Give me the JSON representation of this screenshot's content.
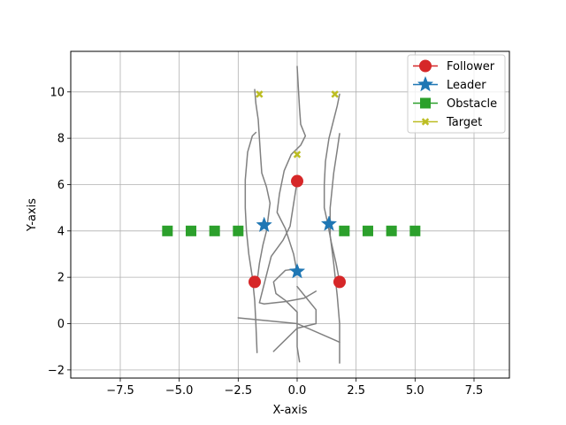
{
  "chart_data": {
    "type": "scatter",
    "title": "",
    "xlabel": "X-axis",
    "ylabel": "Y-axis",
    "xlim": [
      -9.6,
      9.0
    ],
    "ylim": [
      -2.35,
      11.75
    ],
    "xticks": [
      -7.5,
      -5.0,
      -2.5,
      0.0,
      2.5,
      5.0,
      7.5
    ],
    "xtick_labels": [
      "−7.5",
      "−5.0",
      "−2.5",
      "0.0",
      "2.5",
      "5.0",
      "7.5"
    ],
    "yticks": [
      -2,
      0,
      2,
      4,
      6,
      8,
      10
    ],
    "ytick_labels": [
      "−2",
      "0",
      "2",
      "4",
      "6",
      "8",
      "10"
    ],
    "grid": true,
    "legend_position": "top-right",
    "colors": {
      "follower": "#d62728",
      "leader": "#1f77b4",
      "obstacle": "#2ca02c",
      "target": "#bcbd22",
      "trajectory": "#808080",
      "grid": "#b0b0b0"
    },
    "series": [
      {
        "name": "Follower",
        "marker": "circle",
        "x": [
          -1.8,
          0.0,
          1.8
        ],
        "y": [
          1.8,
          6.15,
          1.8
        ]
      },
      {
        "name": "Leader",
        "marker": "star",
        "x": [
          -1.4,
          0.0,
          1.35
        ],
        "y": [
          4.25,
          2.25,
          4.3
        ]
      },
      {
        "name": "Obstacle",
        "marker": "square",
        "x": [
          -5.5,
          -4.5,
          -3.5,
          -2.5,
          2.0,
          3.0,
          4.0,
          5.0
        ],
        "y": [
          4.0,
          4.0,
          4.0,
          4.0,
          4.0,
          4.0,
          4.0,
          4.0
        ]
      },
      {
        "name": "Target",
        "marker": "x-filled",
        "x": [
          -1.6,
          0.0,
          1.6
        ],
        "y": [
          9.9,
          7.3,
          9.9
        ]
      }
    ],
    "trajectories": [
      {
        "x": [
          -1.8,
          -1.75,
          -1.65,
          -1.6,
          -1.55,
          -1.5,
          -1.3,
          -1.15,
          -1.2,
          -1.25,
          -1.3,
          -1.45,
          -1.6,
          -1.7
        ],
        "y": [
          10.1,
          9.5,
          8.8,
          8.0,
          7.2,
          6.5,
          5.9,
          5.2,
          4.8,
          4.4,
          4.0,
          3.4,
          2.6,
          1.8
        ]
      },
      {
        "x": [
          -1.75,
          -1.9,
          -2.1,
          -2.2,
          -2.2,
          -2.15,
          -2.05,
          -1.9,
          -1.8,
          -1.75,
          -1.7
        ],
        "y": [
          8.25,
          8.1,
          7.4,
          6.2,
          5.0,
          4.0,
          3.0,
          2.0,
          1.0,
          0.0,
          -1.25
        ]
      },
      {
        "x": [
          0.0,
          0.05,
          0.1,
          0.15,
          0.35,
          0.15,
          -0.25,
          -0.55,
          -0.75,
          -0.85,
          -0.5,
          -0.15,
          0.0
        ],
        "y": [
          11.1,
          10.2,
          9.3,
          8.6,
          8.1,
          7.7,
          7.3,
          6.6,
          5.6,
          4.8,
          4.1,
          3.0,
          2.2
        ]
      },
      {
        "x": [
          0.0,
          -0.3,
          -0.6,
          -1.1,
          -1.6,
          -1.4,
          -0.5,
          0.3,
          0.8
        ],
        "y": [
          6.15,
          4.2,
          3.6,
          2.9,
          0.9,
          0.85,
          0.95,
          1.1,
          1.4
        ]
      },
      {
        "x": [
          1.8,
          1.7,
          1.55,
          1.35,
          1.2,
          1.15,
          1.15,
          1.3,
          1.45,
          1.65,
          1.8
        ],
        "y": [
          9.9,
          9.4,
          8.8,
          8.0,
          7.0,
          6.0,
          5.0,
          4.3,
          3.5,
          2.6,
          1.8
        ]
      },
      {
        "x": [
          1.8,
          1.7,
          1.55,
          1.4,
          1.4,
          1.55,
          1.7,
          1.8,
          1.8
        ],
        "y": [
          8.2,
          7.5,
          6.5,
          5.0,
          3.8,
          2.6,
          1.2,
          0.0,
          -1.7
        ]
      },
      {
        "x": [
          0.0,
          -0.1,
          -0.5,
          -1.0,
          -0.9,
          -0.5,
          0.0,
          0.0,
          0.0,
          0.1
        ],
        "y": [
          2.25,
          2.35,
          2.3,
          1.8,
          1.3,
          1.0,
          0.5,
          -0.3,
          -1.0,
          -1.65
        ]
      },
      {
        "x": [
          -2.5,
          0.0,
          1.8
        ],
        "y": [
          0.25,
          0.0,
          -0.8
        ]
      },
      {
        "x": [
          -1.0,
          0.0,
          0.8,
          0.8,
          0.0
        ],
        "y": [
          -1.2,
          -0.2,
          0.0,
          0.6,
          1.6
        ]
      }
    ]
  }
}
